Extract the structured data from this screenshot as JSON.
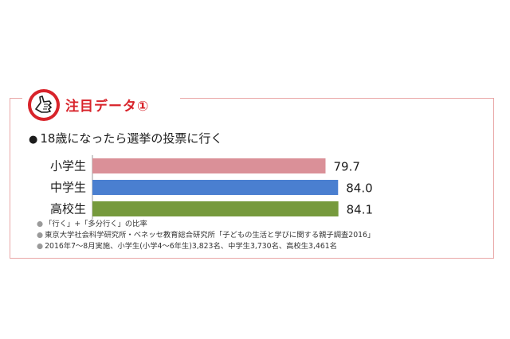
{
  "header": {
    "title": "注目データ①"
  },
  "chart_data": {
    "type": "bar",
    "orientation": "horizontal",
    "title": "18歳になったら選挙の投票に行く",
    "categories": [
      "小学生",
      "中学生",
      "高校生"
    ],
    "values": [
      79.7,
      84.0,
      84.1
    ],
    "value_labels": [
      "79.7",
      "84.0",
      "84.1"
    ],
    "colors": [
      "#da9098",
      "#4a7fd0",
      "#769a3d"
    ],
    "xlim": [
      0,
      100
    ],
    "grid": false,
    "legend": "none"
  },
  "notes": [
    "「行く」+「多分行く」の比率",
    "東京大学社会科学研究所・ベネッセ教育総合研究所「子どもの生活と学びに関する親子調査2016」",
    "2016年7～8月実施、小学生(小学4～6年生)3,823名、中学生3,730名、高校生3,461名"
  ],
  "colors": {
    "accent": "#d8232a",
    "frame": "#e9a7a7"
  }
}
